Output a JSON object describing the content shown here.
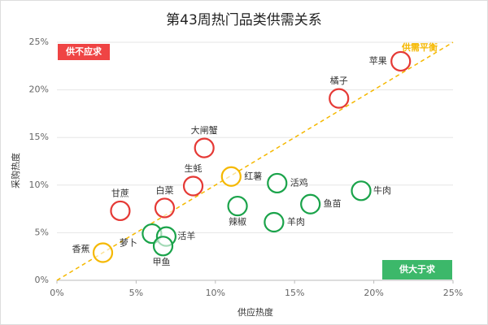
{
  "chart_data": {
    "type": "scatter",
    "title": "第43周热门品类供需关系",
    "x_label": "供应热度",
    "y_label": "采购热度",
    "xlim": [
      0,
      25
    ],
    "ylim": [
      0,
      25
    ],
    "xticks": [
      {
        "value": 0,
        "label": "0%"
      },
      {
        "value": 5,
        "label": "5%"
      },
      {
        "value": 10,
        "label": "10%"
      },
      {
        "value": 15,
        "label": "15%"
      },
      {
        "value": 20,
        "label": "20%"
      },
      {
        "value": 25,
        "label": "25%"
      }
    ],
    "yticks": [
      {
        "value": 0,
        "label": "0%"
      },
      {
        "value": 5,
        "label": "5%"
      },
      {
        "value": 10,
        "label": "10%"
      },
      {
        "value": 15,
        "label": "15%"
      },
      {
        "value": 20,
        "label": "20%"
      },
      {
        "value": 25,
        "label": "25%"
      }
    ],
    "grid": true,
    "annotations": {
      "shortage": "供不应求",
      "surplus": "供大于求",
      "balance": "供需平衡"
    },
    "points": [
      {
        "name": "苹果",
        "x": 21.7,
        "y": 23.0,
        "color": "#e53935"
      },
      {
        "name": "橘子",
        "x": 17.8,
        "y": 19.1,
        "color": "#e53935"
      },
      {
        "name": "大闸蟹",
        "x": 9.3,
        "y": 13.9,
        "color": "#e53935"
      },
      {
        "name": "生蚝",
        "x": 8.6,
        "y": 9.9,
        "color": "#e53935"
      },
      {
        "name": "红薯",
        "x": 11.0,
        "y": 10.9,
        "color": "#f5b800"
      },
      {
        "name": "活鸡",
        "x": 13.9,
        "y": 10.2,
        "color": "#1aa34a"
      },
      {
        "name": "牛肉",
        "x": 19.2,
        "y": 9.4,
        "color": "#1aa34a"
      },
      {
        "name": "鱼苗",
        "x": 16.0,
        "y": 8.0,
        "color": "#1aa34a"
      },
      {
        "name": "辣椒",
        "x": 11.4,
        "y": 7.8,
        "color": "#1aa34a"
      },
      {
        "name": "羊肉",
        "x": 13.7,
        "y": 6.1,
        "color": "#1aa34a"
      },
      {
        "name": "甘蔗",
        "x": 4.0,
        "y": 7.3,
        "color": "#e53935"
      },
      {
        "name": "白菜",
        "x": 6.8,
        "y": 7.6,
        "color": "#e53935"
      },
      {
        "name": "萝卜",
        "x": 6.0,
        "y": 4.9,
        "color": "#1aa34a"
      },
      {
        "name": "活羊",
        "x": 6.9,
        "y": 4.6,
        "color": "#1aa34a"
      },
      {
        "name": "甲鱼",
        "x": 6.7,
        "y": 3.6,
        "color": "#1aa34a"
      },
      {
        "name": "香蕉",
        "x": 2.9,
        "y": 2.9,
        "color": "#f5b800"
      }
    ]
  }
}
